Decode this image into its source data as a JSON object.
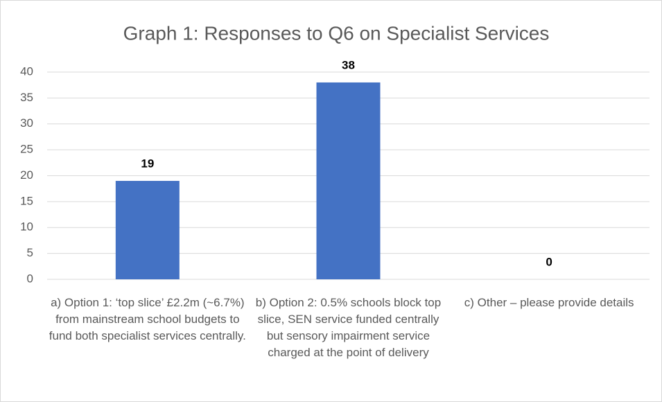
{
  "chart_data": {
    "type": "bar",
    "title": "Graph 1: Responses  to Q6 on Specialist Services",
    "categories": [
      "a) Option 1: ‘top slice’ £2.2m (~6.7%) from mainstream school budgets to fund both specialist services centrally.",
      "b) Option 2: 0.5% schools block top slice, SEN service funded centrally but sensory impairment service charged at the point of delivery",
      "c) Other – please provide details"
    ],
    "values": [
      19,
      38,
      0
    ],
    "color": "#4472c4",
    "ylim": [
      0,
      40
    ],
    "yticks": [
      0,
      5,
      10,
      15,
      20,
      25,
      30,
      35,
      40
    ],
    "grid": true
  }
}
